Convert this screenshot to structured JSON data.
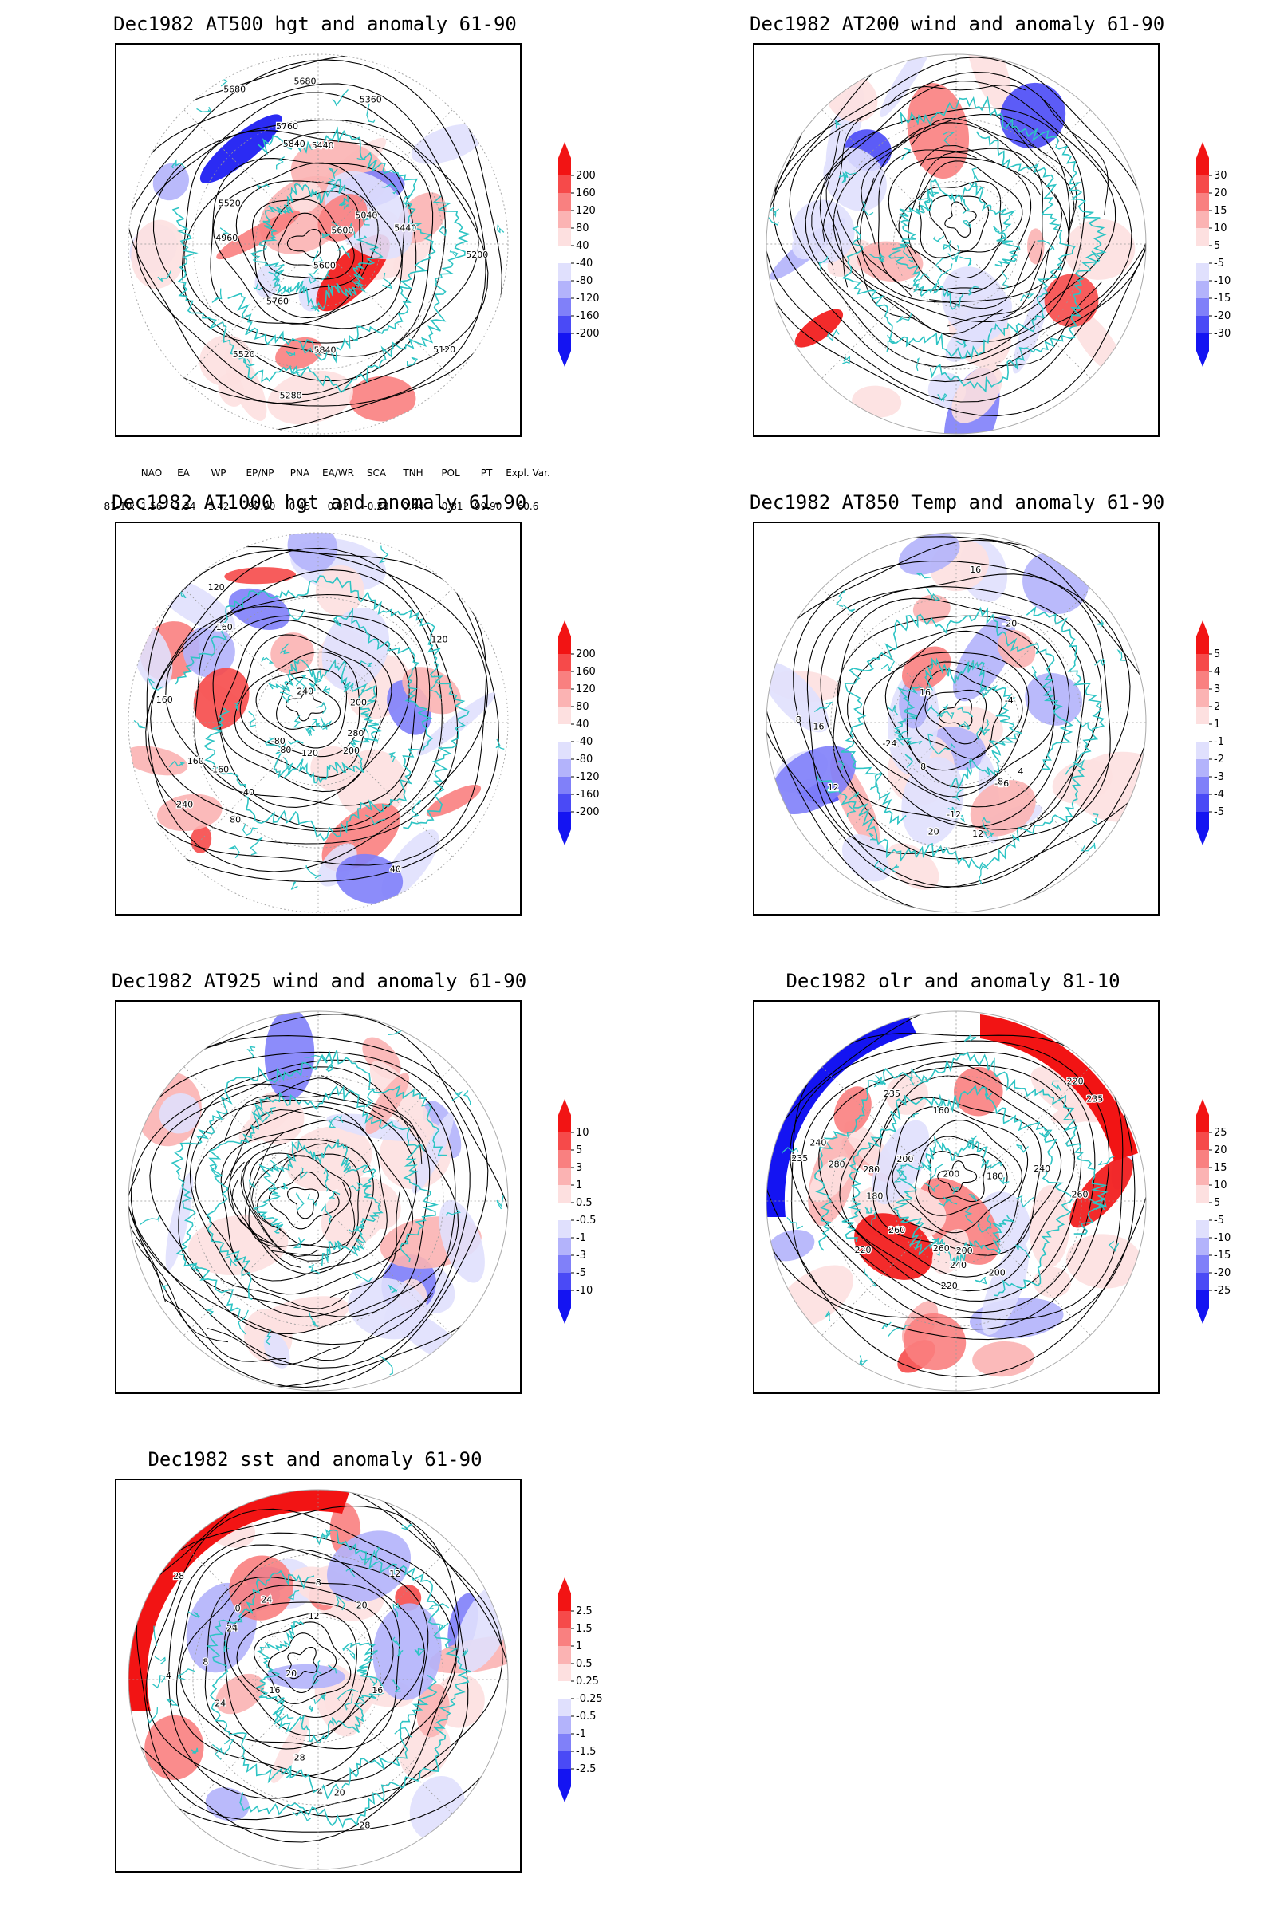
{
  "panels": [
    {
      "id": "p1",
      "title": "Dec1982 AT500 hgt and anomaly 61-90",
      "colorbar": [
        "200",
        "160",
        "120",
        "80",
        "40",
        "-40",
        "-80",
        "-120",
        "-160",
        "-200"
      ],
      "contour_labels": [
        "5840",
        "5760",
        "5680",
        "5600",
        "5520",
        "5440",
        "5360",
        "5280",
        "5200",
        "5120",
        "5040",
        "4960",
        "5840",
        "5760",
        "5680",
        "5600",
        "5520",
        "5440"
      ]
    },
    {
      "id": "p2",
      "title": "Dec1982 AT200 wind and anomaly 61-90",
      "colorbar": [
        "30",
        "20",
        "15",
        "10",
        "5",
        "-5",
        "-10",
        "-15",
        "-20",
        "-30"
      ],
      "contour_labels": []
    },
    {
      "id": "p3",
      "title": "Dec1982 AT1000 hgt and anomaly 61-90",
      "colorbar": [
        "200",
        "160",
        "120",
        "80",
        "40",
        "-40",
        "-80",
        "-120",
        "-160",
        "-200"
      ],
      "contour_labels": [
        "80",
        "160",
        "160",
        "160",
        "120",
        "-80",
        "40",
        "280",
        "240",
        "200",
        "200",
        "240",
        "160",
        "120",
        "120",
        "-80",
        "40"
      ]
    },
    {
      "id": "p4",
      "title": "Dec1982 AT850 Temp and anomaly 61-90",
      "colorbar": [
        "5",
        "4",
        "3",
        "2",
        "1",
        "-1",
        "-2",
        "-3",
        "-4",
        "-5"
      ],
      "contour_labels": [
        "12",
        "8",
        "-24",
        "-20",
        "-16",
        "-12",
        "-8",
        "-4",
        "4",
        "8",
        "12",
        "16",
        "20",
        "16",
        "16"
      ]
    },
    {
      "id": "p5",
      "title": "Dec1982 AT925 wind and anomaly 61-90",
      "colorbar": [
        "10",
        "5",
        "3",
        "1",
        "0.5",
        "-0.5",
        "-1",
        "-3",
        "-5",
        "-10"
      ],
      "contour_labels": []
    },
    {
      "id": "p6",
      "title": "Dec1982 olr and anomaly 81-10",
      "colorbar": [
        "25",
        "20",
        "15",
        "10",
        "5",
        "-5",
        "-10",
        "-15",
        "-20",
        "-25"
      ],
      "contour_labels": [
        "235",
        "200",
        "260",
        "240",
        "220",
        "180",
        "200",
        "160",
        "180",
        "200",
        "220",
        "240",
        "260",
        "280",
        "235",
        "240",
        "260",
        "280",
        "220",
        "235",
        "200"
      ]
    },
    {
      "id": "p7",
      "title": "Dec1982 sst and anomaly 61-90",
      "colorbar": [
        "2.5",
        "1.5",
        "1",
        "0.5",
        "0.25",
        "-0.25",
        "-0.5",
        "-1",
        "-1.5",
        "-2.5"
      ],
      "contour_labels": [
        "28",
        "24",
        "20",
        "16",
        "12",
        "8",
        "4",
        "0",
        "28",
        "24",
        "20",
        "16",
        "12",
        "8",
        "4",
        "28",
        "20",
        "24"
      ]
    }
  ],
  "teleconnections": {
    "headers": [
      "NAO",
      "EA",
      "WP",
      "EP/NP",
      "PNA",
      "EA/WR",
      "SCA",
      "TNH",
      "POL",
      "PT",
      "Expl. Var."
    ],
    "row_label": "81-10:",
    "values": [
      "1.56",
      "-1.34",
      "1.42",
      "-99.90",
      "0.45",
      "0.02",
      "-0.28",
      "0.44",
      "-0.81",
      "-99.90",
      "60.6"
    ]
  },
  "colors": {
    "positive": [
      "#f21414",
      "#f64a4a",
      "#f98080",
      "#fbb3b3",
      "#fde0e0"
    ],
    "negative": [
      "#e0e0fd",
      "#b3b3fb",
      "#8080f9",
      "#4a4af6",
      "#1414f2"
    ],
    "coastline": "#2ec4c4",
    "contour": "#000000"
  },
  "chart_data": [
    {
      "type": "heatmap",
      "title": "Dec1982 AT500 hgt and anomaly 61-90",
      "colorbar_levels": [
        -200,
        -160,
        -120,
        -80,
        -40,
        40,
        80,
        120,
        160,
        200
      ],
      "contour_levels_range": [
        4960,
        5840
      ],
      "contour_interval": 40
    },
    {
      "type": "heatmap",
      "title": "Dec1982 AT200 wind and anomaly 61-90",
      "colorbar_levels": [
        -30,
        -20,
        -15,
        -10,
        -5,
        5,
        10,
        15,
        20,
        30
      ]
    },
    {
      "type": "heatmap",
      "title": "Dec1982 AT1000 hgt and anomaly 61-90",
      "colorbar_levels": [
        -200,
        -160,
        -120,
        -80,
        -40,
        40,
        80,
        120,
        160,
        200
      ],
      "contour_levels_range": [
        -80,
        280
      ],
      "contour_interval": 40
    },
    {
      "type": "heatmap",
      "title": "Dec1982 AT850 Temp and anomaly 61-90",
      "colorbar_levels": [
        -5,
        -4,
        -3,
        -2,
        -1,
        1,
        2,
        3,
        4,
        5
      ],
      "contour_levels_range": [
        -28,
        20
      ],
      "contour_interval": 4
    },
    {
      "type": "heatmap",
      "title": "Dec1982 AT925 wind and anomaly 61-90",
      "colorbar_levels": [
        -10,
        -5,
        -3,
        -1,
        -0.5,
        0.5,
        1,
        3,
        5,
        10
      ]
    },
    {
      "type": "heatmap",
      "title": "Dec1982 olr and anomaly 81-10",
      "colorbar_levels": [
        -25,
        -20,
        -15,
        -10,
        -5,
        5,
        10,
        15,
        20,
        25
      ],
      "contour_levels_range": [
        160,
        280
      ],
      "contour_interval": 20
    },
    {
      "type": "heatmap",
      "title": "Dec1982 sst and anomaly 61-90",
      "colorbar_levels": [
        -2.5,
        -1.5,
        -1,
        -0.5,
        -0.25,
        0.25,
        0.5,
        1,
        1.5,
        2.5
      ],
      "contour_levels_range": [
        0,
        28
      ],
      "contour_interval": 4
    }
  ]
}
